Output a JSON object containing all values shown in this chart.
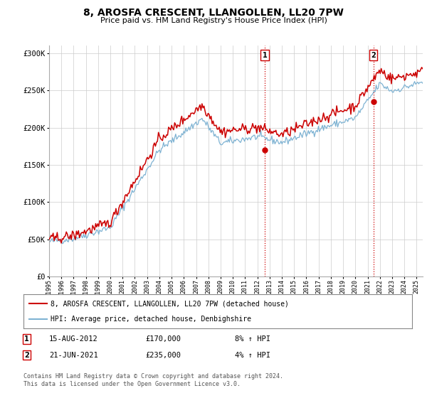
{
  "title": "8, AROSFA CRESCENT, LLANGOLLEN, LL20 7PW",
  "subtitle": "Price paid vs. HM Land Registry's House Price Index (HPI)",
  "xlim_start": 1995.0,
  "xlim_end": 2025.5,
  "ylim": [
    0,
    310000
  ],
  "yticks": [
    0,
    50000,
    100000,
    150000,
    200000,
    250000,
    300000
  ],
  "ytick_labels": [
    "£0",
    "£50K",
    "£100K",
    "£150K",
    "£200K",
    "£250K",
    "£300K"
  ],
  "sale1_x": 2012.62,
  "sale1_y": 170000,
  "sale1_label": "1",
  "sale2_x": 2021.47,
  "sale2_y": 235000,
  "sale2_label": "2",
  "legend_line1": "8, AROSFA CRESCENT, LLANGOLLEN, LL20 7PW (detached house)",
  "legend_line2": "HPI: Average price, detached house, Denbighshire",
  "annot1_date": "15-AUG-2012",
  "annot1_price": "£170,000",
  "annot1_hpi": "8% ↑ HPI",
  "annot2_date": "21-JUN-2021",
  "annot2_price": "£235,000",
  "annot2_hpi": "4% ↑ HPI",
  "footer": "Contains HM Land Registry data © Crown copyright and database right 2024.\nThis data is licensed under the Open Government Licence v3.0.",
  "line_color_red": "#cc0000",
  "line_color_blue": "#7fb3d3",
  "background_color": "#ffffff",
  "grid_color": "#cccccc"
}
